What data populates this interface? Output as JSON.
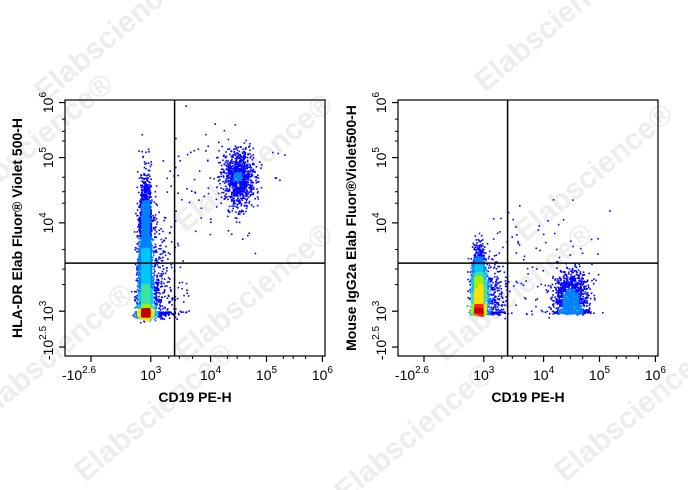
{
  "watermark": "Elabscience®",
  "palette": [
    "#0000ff",
    "#0080ff",
    "#00c8ff",
    "#40e0a0",
    "#a0f000",
    "#ffe000",
    "#ff8000",
    "#ff2000",
    "#c00000"
  ],
  "chart_data": [
    {
      "type": "scatter",
      "subtype": "flow-cytometry density dot plot",
      "xlabel": "CD19 PE-H",
      "ylabel": "HLA-DR Elab Fluor® Violet 500-H",
      "x_scale": "biexponential",
      "y_scale": "biexponential",
      "x_ticks": [
        {
          "base": "-10",
          "exp": "2.6",
          "value": -398
        },
        {
          "base": "10",
          "exp": "3",
          "value": 1000
        },
        {
          "base": "10",
          "exp": "4",
          "value": 10000
        },
        {
          "base": "10",
          "exp": "5",
          "value": 100000
        },
        {
          "base": "10",
          "exp": "6",
          "value": 1000000
        }
      ],
      "y_ticks": [
        {
          "base": "-10",
          "exp": "2.5",
          "value": -316
        },
        {
          "base": "10",
          "exp": "3",
          "value": 1000
        },
        {
          "base": "10",
          "exp": "4",
          "value": 10000
        },
        {
          "base": "10",
          "exp": "5",
          "value": 100000
        },
        {
          "base": "10",
          "exp": "6",
          "value": 1000000
        }
      ],
      "gate": {
        "x": 2500,
        "y": 3500
      },
      "populations": [
        {
          "center": [
            320,
            1100
          ],
          "spread_decades": [
            0.34,
            0.4
          ],
          "count": 6500
        },
        {
          "center": [
            300,
            5000
          ],
          "spread_decades": [
            0.3,
            0.45
          ],
          "count": 2600
        },
        {
          "center": [
            32000,
            50000
          ],
          "spread_decades": [
            0.13,
            0.22
          ],
          "count": 900
        },
        {
          "center": [
            15000,
            60000
          ],
          "spread_decades": [
            0.45,
            0.4
          ],
          "count": 110
        }
      ]
    },
    {
      "type": "scatter",
      "subtype": "flow-cytometry density dot plot",
      "xlabel": "CD19 PE-H",
      "ylabel": "Mouse IgG2a Elab Fluor®Violet500-H",
      "x_scale": "biexponential",
      "y_scale": "biexponential",
      "x_ticks": [
        {
          "base": "-10",
          "exp": "2.6",
          "value": -398
        },
        {
          "base": "10",
          "exp": "3",
          "value": 1000
        },
        {
          "base": "10",
          "exp": "4",
          "value": 10000
        },
        {
          "base": "10",
          "exp": "5",
          "value": 100000
        },
        {
          "base": "10",
          "exp": "6",
          "value": 1000000
        }
      ],
      "y_ticks": [
        {
          "base": "-10",
          "exp": "2.5",
          "value": -316
        },
        {
          "base": "10",
          "exp": "3",
          "value": 1000
        },
        {
          "base": "10",
          "exp": "4",
          "value": 10000
        },
        {
          "base": "10",
          "exp": "5",
          "value": 100000
        },
        {
          "base": "10",
          "exp": "6",
          "value": 1000000
        }
      ],
      "gate": {
        "x": 2500,
        "y": 3500
      },
      "populations": [
        {
          "center": [
            330,
            1400
          ],
          "spread_decades": [
            0.3,
            0.22
          ],
          "count": 7000
        },
        {
          "center": [
            30000,
            1300
          ],
          "spread_decades": [
            0.15,
            0.17
          ],
          "count": 1300
        },
        {
          "center": [
            8000,
            2000
          ],
          "spread_decades": [
            0.6,
            0.5
          ],
          "count": 110
        }
      ]
    }
  ]
}
